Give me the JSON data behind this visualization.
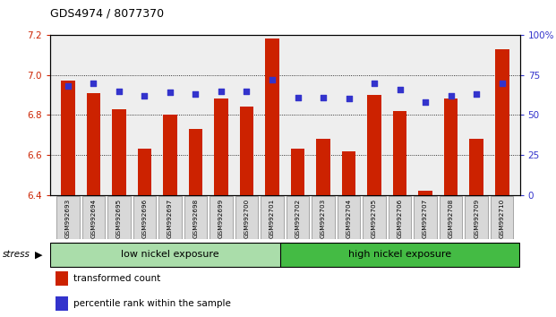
{
  "title": "GDS4974 / 8077370",
  "samples": [
    "GSM992693",
    "GSM992694",
    "GSM992695",
    "GSM992696",
    "GSM992697",
    "GSM992698",
    "GSM992699",
    "GSM992700",
    "GSM992701",
    "GSM992702",
    "GSM992703",
    "GSM992704",
    "GSM992705",
    "GSM992706",
    "GSM992707",
    "GSM992708",
    "GSM992709",
    "GSM992710"
  ],
  "transformed_count": [
    6.97,
    6.91,
    6.83,
    6.63,
    6.8,
    6.73,
    6.88,
    6.84,
    7.18,
    6.63,
    6.68,
    6.62,
    6.9,
    6.82,
    6.42,
    6.88,
    6.68,
    7.13
  ],
  "percentile_rank": [
    68,
    70,
    65,
    62,
    64,
    63,
    65,
    65,
    72,
    61,
    61,
    60,
    70,
    66,
    58,
    62,
    63,
    70
  ],
  "ylim_left": [
    6.4,
    7.2
  ],
  "ylim_right": [
    0,
    100
  ],
  "yticks_left": [
    6.4,
    6.6,
    6.8,
    7.0,
    7.2
  ],
  "yticks_right": [
    0,
    25,
    50,
    75,
    100
  ],
  "bar_color": "#cc2200",
  "dot_color": "#3333cc",
  "bar_width": 0.55,
  "group1_label": "low nickel exposure",
  "group2_label": "high nickel exposure",
  "group1_count": 9,
  "group2_count": 9,
  "group1_color": "#aaddaa",
  "group2_color": "#44bb44",
  "stress_label": "stress",
  "legend_bar_label": "transformed count",
  "legend_dot_label": "percentile rank within the sample",
  "plot_bg_color": "#eeeeee",
  "ylabel_left_color": "#cc2200",
  "ylabel_right_color": "#3333cc"
}
